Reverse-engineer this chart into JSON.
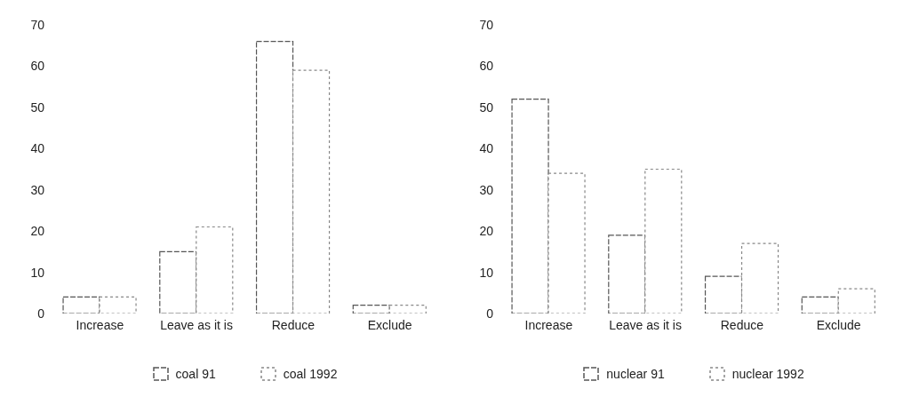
{
  "chart_data": [
    {
      "type": "bar",
      "categories": [
        "Increase",
        "Leave as it is",
        "Reduce",
        "Exclude"
      ],
      "series": [
        {
          "name": "coal 91",
          "color": "#555555",
          "values": [
            4,
            15,
            66,
            2
          ]
        },
        {
          "name": "coal 1992",
          "color": "#888888",
          "values": [
            4,
            21,
            59,
            2
          ]
        }
      ],
      "ylim": [
        0,
        70
      ],
      "yticks": [
        0,
        10,
        20,
        30,
        40,
        50,
        60,
        70
      ],
      "legend": "bottom"
    },
    {
      "type": "bar",
      "categories": [
        "Increase",
        "Leave as it is",
        "Reduce",
        "Exclude"
      ],
      "series": [
        {
          "name": "nuclear 91",
          "color": "#555555",
          "values": [
            52,
            19,
            9,
            4
          ]
        },
        {
          "name": "nuclear 1992",
          "color": "#888888",
          "values": [
            34,
            35,
            17,
            6
          ]
        }
      ],
      "ylim": [
        0,
        70
      ],
      "yticks": [
        0,
        10,
        20,
        30,
        40,
        50,
        60,
        70
      ],
      "legend": "bottom"
    }
  ]
}
